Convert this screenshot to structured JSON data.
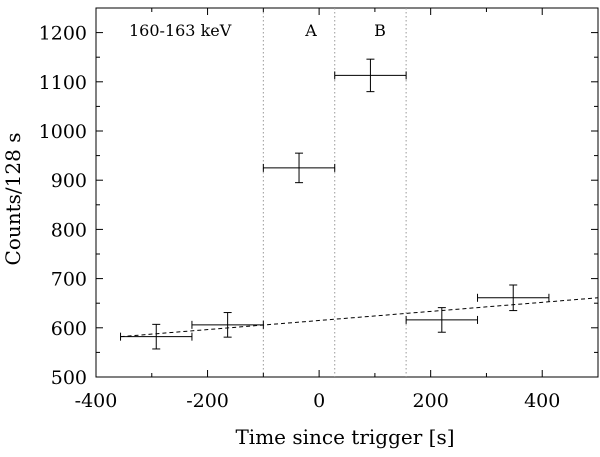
{
  "chart_data": {
    "type": "scatter",
    "title": "",
    "xlabel": "Time since trigger [s]",
    "ylabel": "Counts/128 s",
    "xlim": [
      -400,
      500
    ],
    "ylim": [
      500,
      1250
    ],
    "xticks": [
      -400,
      -200,
      0,
      200,
      400
    ],
    "yticks": [
      500,
      600,
      700,
      800,
      900,
      1000,
      1100,
      1200
    ],
    "grid": false,
    "annotations": {
      "energy_band": "160-163 keV",
      "region_a": "A",
      "region_b": "B"
    },
    "region_boundaries_x": [
      -100,
      28,
      156
    ],
    "series": [
      {
        "name": "counts",
        "style": "errorbar",
        "points": [
          {
            "x": -292,
            "x_err": 64,
            "y": 582,
            "y_err": 25
          },
          {
            "x": -164,
            "x_err": 64,
            "y": 606,
            "y_err": 25
          },
          {
            "x": -36,
            "x_err": 64,
            "y": 925,
            "y_err": 30
          },
          {
            "x": 92,
            "x_err": 64,
            "y": 1113,
            "y_err": 33
          },
          {
            "x": 220,
            "x_err": 64,
            "y": 616,
            "y_err": 25
          },
          {
            "x": 348,
            "x_err": 64,
            "y": 661,
            "y_err": 26
          }
        ]
      },
      {
        "name": "background fit",
        "style": "dashed-line",
        "x": [
          -356,
          500
        ],
        "y": [
          582,
          661
        ]
      }
    ]
  }
}
